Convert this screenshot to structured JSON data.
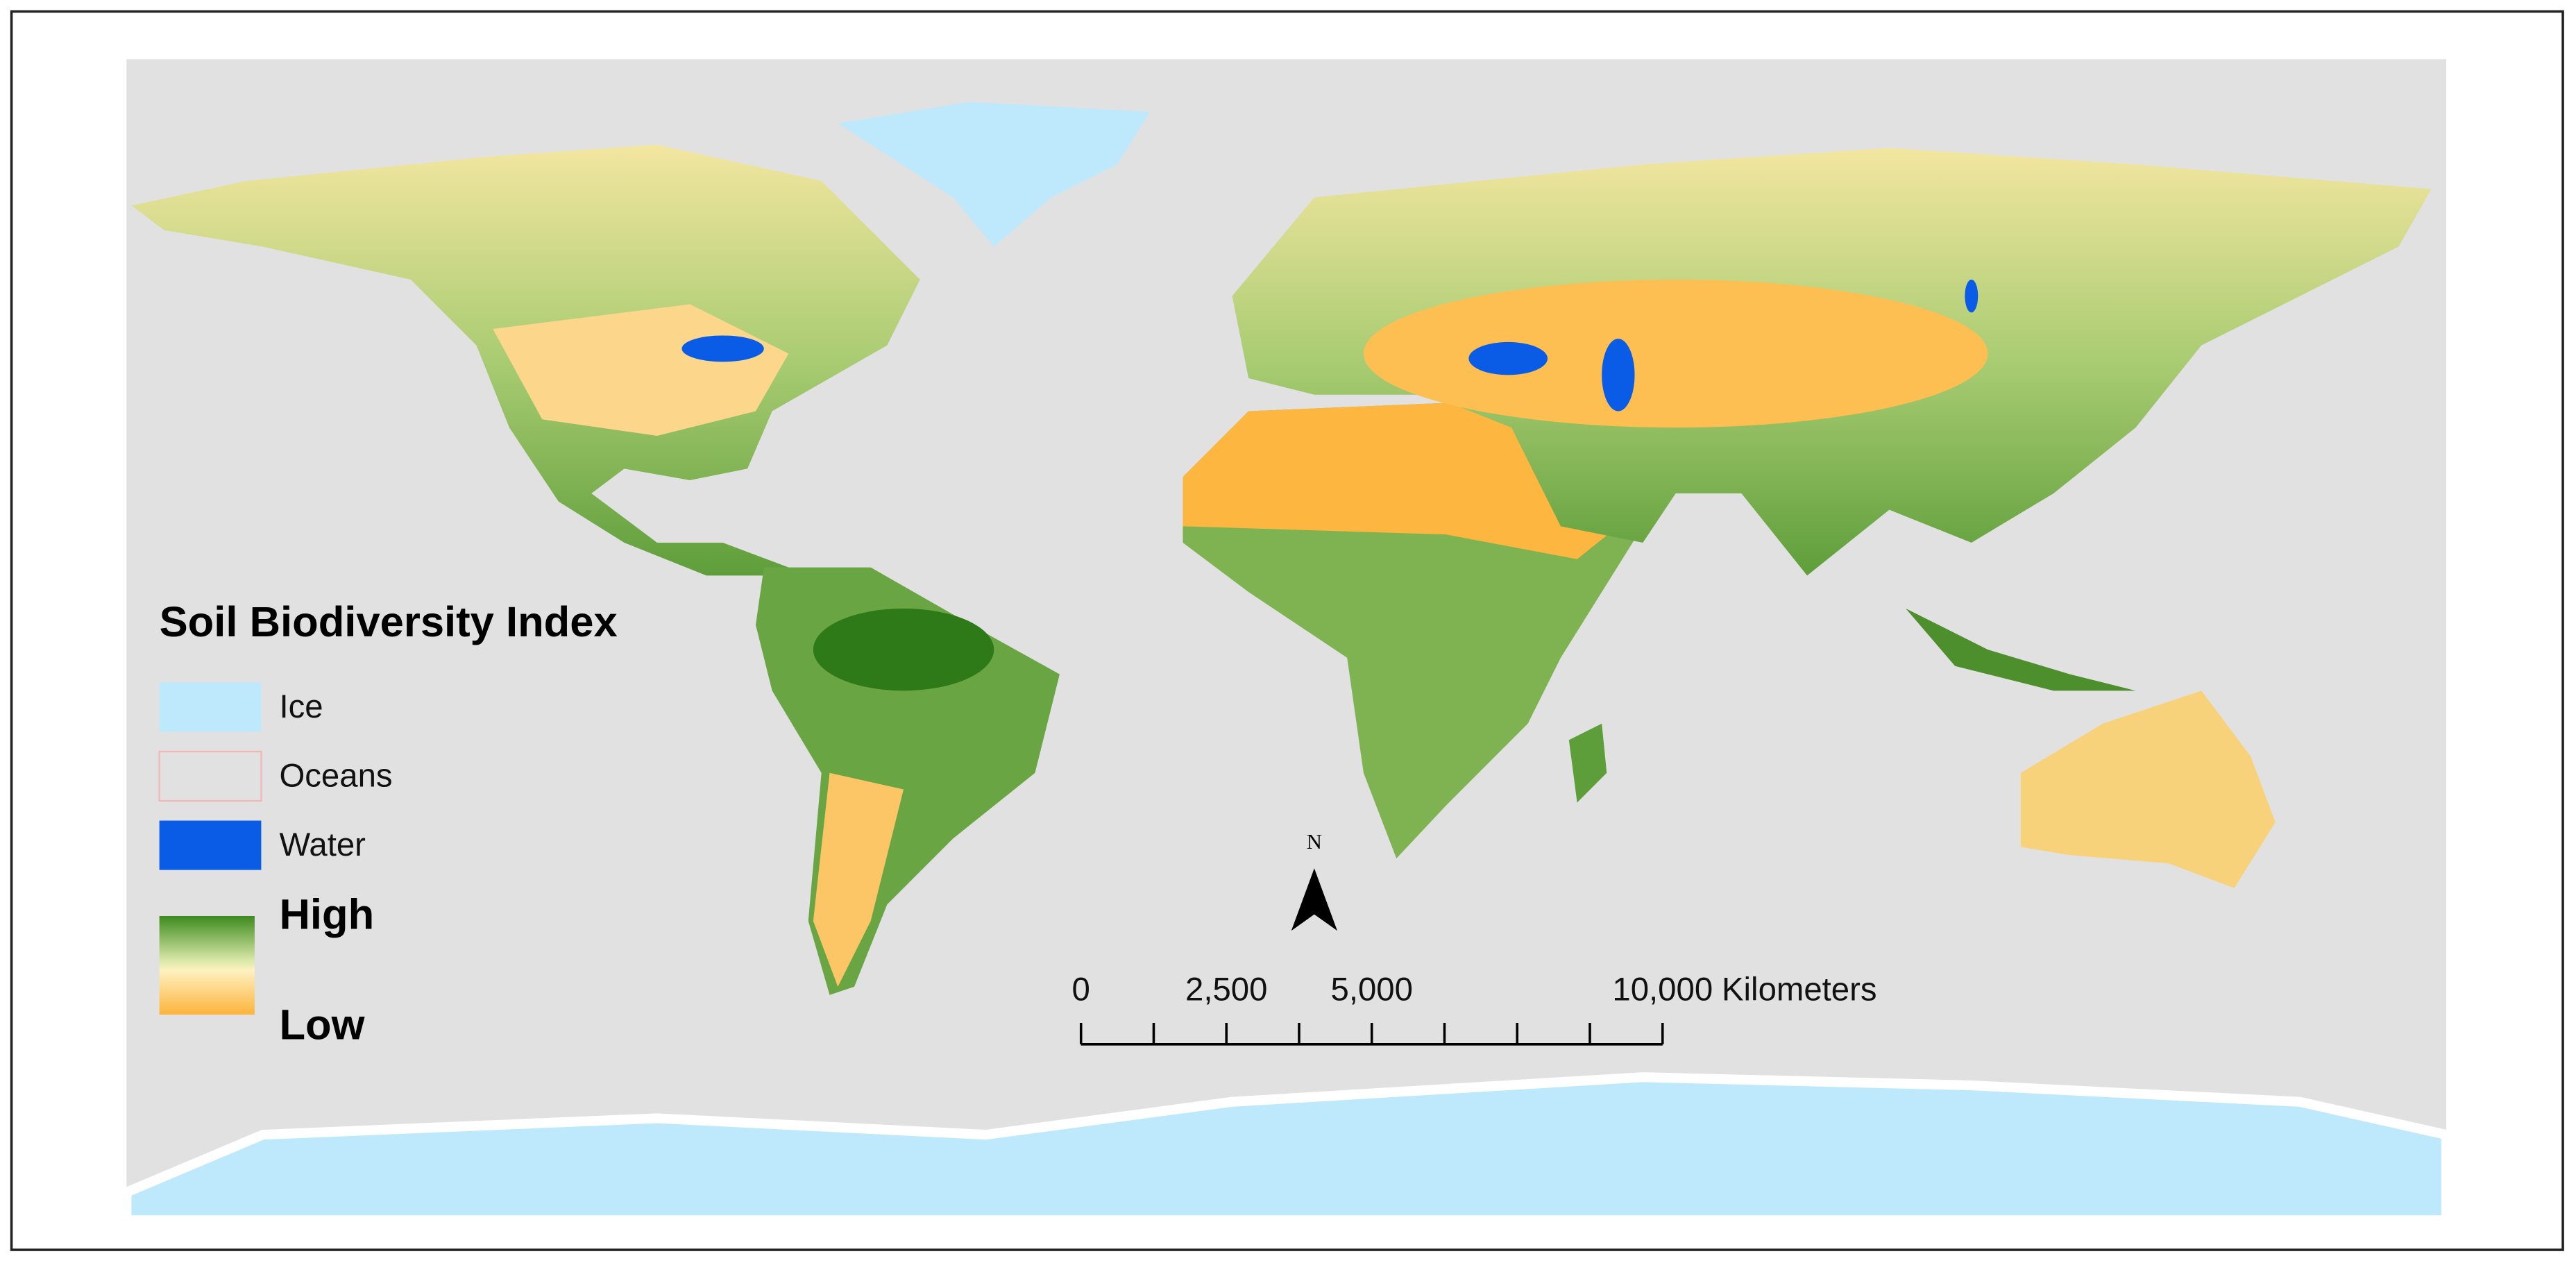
{
  "legend": {
    "title": "Soil Biodiversity Index",
    "items": [
      {
        "label": "Ice",
        "color": "#bee8fb"
      },
      {
        "label": "Oceans",
        "color": "#e1e1e1"
      },
      {
        "label": "Water",
        "color": "#0a5ce6"
      }
    ],
    "gradient": {
      "high": "High",
      "low": "Low",
      "high_color": "#3d8a1e",
      "low_color": "#fdb43c"
    }
  },
  "north_arrow": "N",
  "scale_bar": {
    "unit": "Kilometers",
    "ticks": [
      0,
      1250,
      2500,
      3750,
      5000,
      6250,
      7500,
      8750,
      10000
    ],
    "labels": [
      0,
      {
        "value": 2500,
        "label": "2,500"
      },
      {
        "value": 5000,
        "label": "5,000"
      },
      {
        "value": 10000,
        "label": "10,000"
      }
    ]
  }
}
